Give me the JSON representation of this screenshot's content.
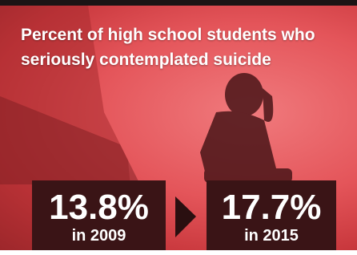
{
  "header": {
    "title": "Percent of high school students who seriously contemplated suicide"
  },
  "stats": [
    {
      "value": "13.8%",
      "label": "in 2009"
    },
    {
      "value": "17.7%",
      "label": "in 2015"
    }
  ]
}
